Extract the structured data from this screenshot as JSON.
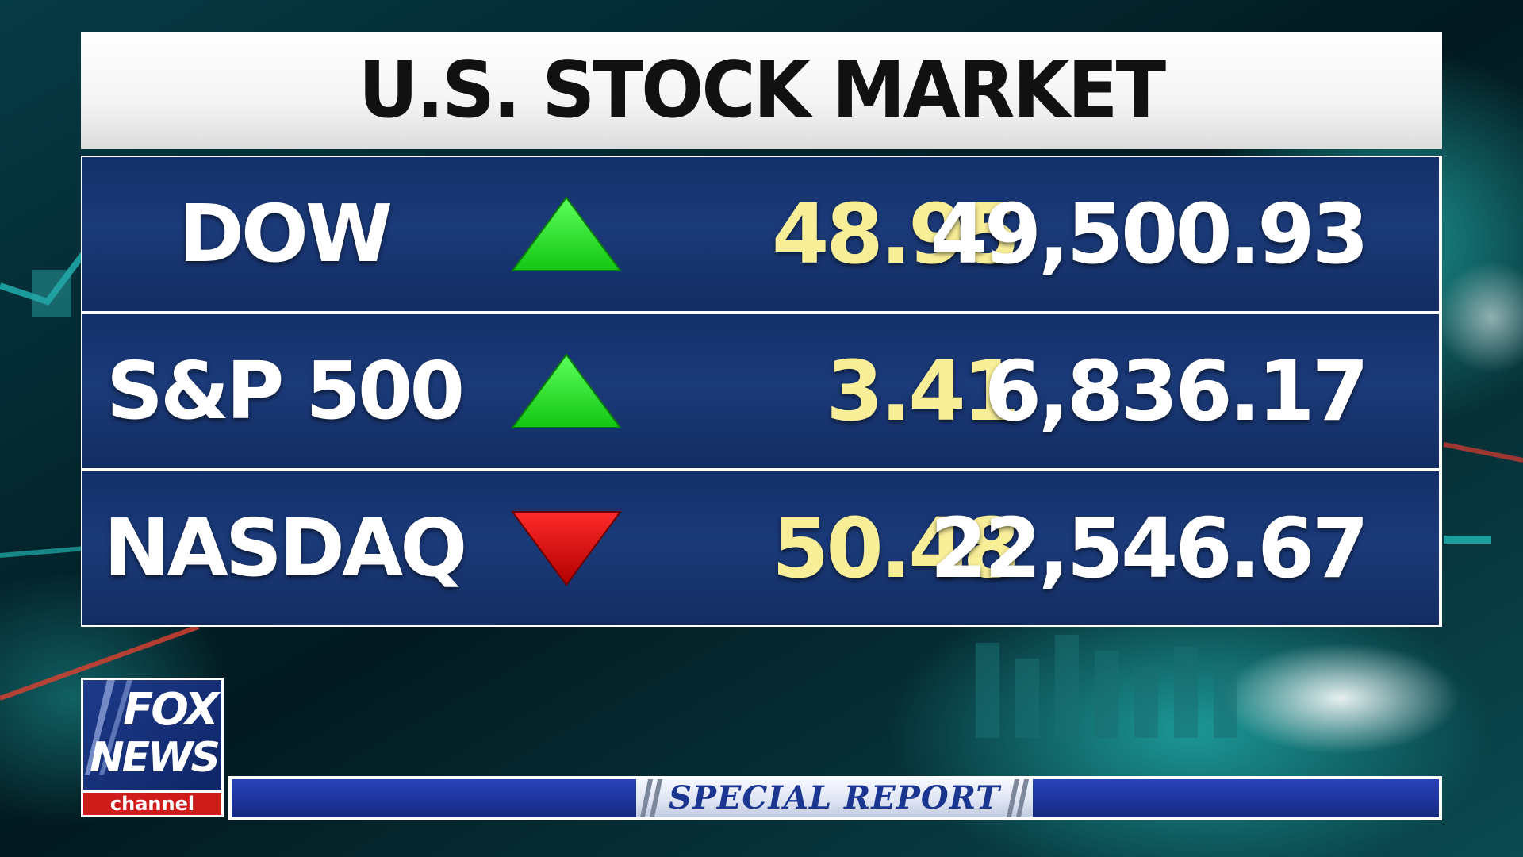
{
  "title": "U.S. STOCK MARKET",
  "rows": [
    {
      "name": "DOW",
      "direction": "up",
      "change": "48.95",
      "value": "49,500.93"
    },
    {
      "name": "S&P 500",
      "direction": "up",
      "change": "3.41",
      "value": "6,836.17"
    },
    {
      "name": "NASDAQ",
      "direction": "down",
      "change": "50.48",
      "value": "22,546.67"
    }
  ],
  "logo": {
    "line1": "FOX",
    "line2": "NEWS",
    "line3": "channel"
  },
  "banner": {
    "label": "SPECIAL REPORT"
  },
  "colors": {
    "up_arrow": "#22dd22",
    "down_arrow": "#e01010",
    "change_text": "#f8ee98",
    "row_bg": "#1b3a79",
    "banner_blue": "#1e36a0",
    "logo_red": "#d11c1c"
  },
  "icons": {
    "up": "up-triangle-icon",
    "down": "down-triangle-icon"
  }
}
